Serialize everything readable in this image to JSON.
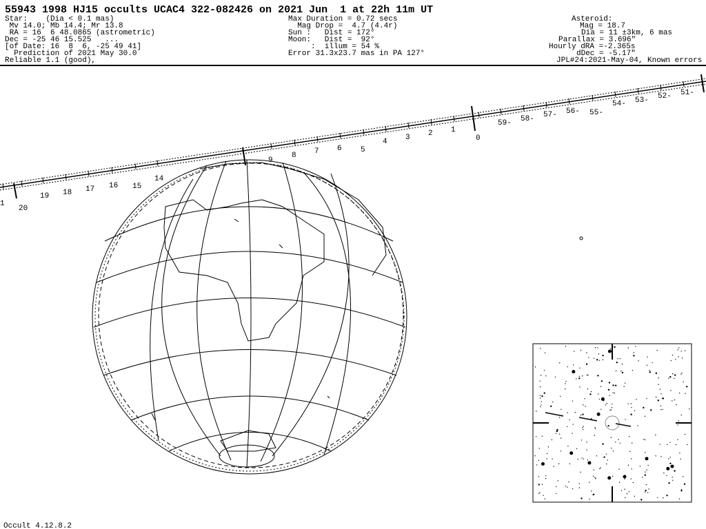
{
  "header": {
    "title": "55943 1998 HJ15 occults UCAC4 322-082426 on 2021 Jun  1 at 22h 11m UT",
    "star": [
      "Star:    (Dia < 0.1 mas)",
      " Mv 14.0; Mb 14.4; Mr 13.8",
      " RA = 16  6 48.0865 (astrometric)",
      "Dec = -25 46 15.525   ...",
      "[of Date: 16  8  6, -25 49 41]",
      "  Prediction of 2021 May 30.0",
      "Reliable 1.1 (good),"
    ],
    "event": [
      "Max Duration = 0.72 secs",
      "  Mag Drop =  4.7 (4.4r)",
      "Sun :   Dist = 172°",
      "Moon:   Dist =  92°",
      "     :  illum = 54 %",
      "Error 31.3x23.7 mas in PA 127°"
    ],
    "asteroid": [
      "Asteroid:",
      "Mag = 18.7",
      "Dia = 11 ±3km, 6 mas",
      "Parallax = 3.696\"",
      "Hourly dRA =-2.365s",
      "dDec = -5.17\"",
      "JPL#24:2021-May-04, Known errors"
    ]
  },
  "path_labels": [
    "1",
    "20",
    "19",
    "18",
    "17",
    "16",
    "15",
    "14",
    "9",
    "8",
    "7",
    "6",
    "5",
    "4",
    "3",
    "2",
    "1",
    "0",
    "59-",
    "58-",
    "57-",
    "56-",
    "55-",
    "54-",
    "53-",
    "52-",
    "51-"
  ],
  "footer": "Occult 4.12.8.2"
}
